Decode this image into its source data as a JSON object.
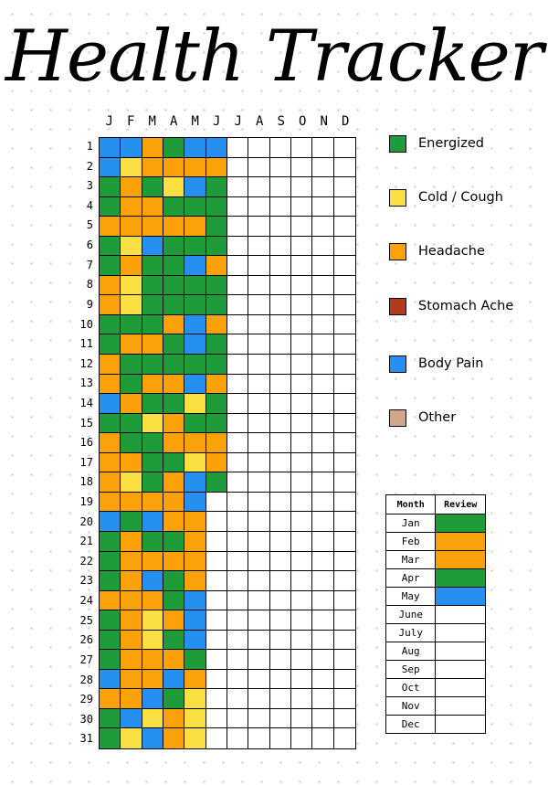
{
  "title": "Health Tracker",
  "months": [
    "J",
    "F",
    "M",
    "A",
    "M",
    "J",
    "J",
    "A",
    "S",
    "O",
    "N",
    "D"
  ],
  "days": [
    "1",
    "2",
    "3",
    "4",
    "5",
    "6",
    "7",
    "8",
    "9",
    "10",
    "11",
    "12",
    "13",
    "14",
    "15",
    "16",
    "17",
    "18",
    "19",
    "20",
    "21",
    "22",
    "23",
    "24",
    "25",
    "26",
    "27",
    "28",
    "29",
    "30",
    "31"
  ],
  "colors": {
    "G": "#1e9c3a",
    "Y": "#fbe044",
    "O": "#fba10a",
    "R": "#b33a1a",
    "B": "#2690f0",
    "T": "#d4a688",
    "W": "#ffffff"
  },
  "legend": [
    {
      "label": "Energized",
      "color": "#1e9c3a"
    },
    {
      "label": "Cold / Cough",
      "color": "#fbe044"
    },
    {
      "label": "Headache",
      "color": "#fba10a"
    },
    {
      "label": "Stomach Ache",
      "color": "#b33a1a"
    },
    {
      "label": "Body Pain",
      "color": "#2690f0"
    },
    {
      "label": "Other",
      "color": "#d4a688"
    }
  ],
  "tracker": [
    "BBOGBB",
    "BYOOOO",
    "GOGYBG",
    "GOOGGG",
    "OOOOOG",
    "GYBGGG",
    "GOGGBO",
    "OYGGGG",
    "OYGGGG",
    "GGGOBO",
    "GOOGBG",
    "OGGGGG",
    "OGOOBO",
    "BOGGYG",
    "GGYOGG",
    "OGGOOO",
    "OOGGYO",
    "OYGOBG",
    "OOOOB",
    "BGBOO",
    "GOGGO",
    "GOOOO",
    "GOBGO",
    "OOOGB",
    "GOYOB",
    "GOYGB",
    "GOOOG",
    "BOOBO",
    "OOBGY",
    "GBYOY",
    "GYBOY"
  ],
  "review": {
    "header_month": "Month",
    "header_review": "Review",
    "rows": [
      {
        "month": "Jan",
        "color": "#1e9c3a"
      },
      {
        "month": "Feb",
        "color": "#fba10a"
      },
      {
        "month": "Mar",
        "color": "#fba10a"
      },
      {
        "month": "Apr",
        "color": "#1e9c3a"
      },
      {
        "month": "May",
        "color": "#2690f0"
      },
      {
        "month": "June",
        "color": "#ffffff"
      },
      {
        "month": "July",
        "color": "#ffffff"
      },
      {
        "month": "Aug",
        "color": "#ffffff"
      },
      {
        "month": "Sep",
        "color": "#ffffff"
      },
      {
        "month": "Oct",
        "color": "#ffffff"
      },
      {
        "month": "Nov",
        "color": "#ffffff"
      },
      {
        "month": "Dec",
        "color": "#ffffff"
      }
    ]
  }
}
